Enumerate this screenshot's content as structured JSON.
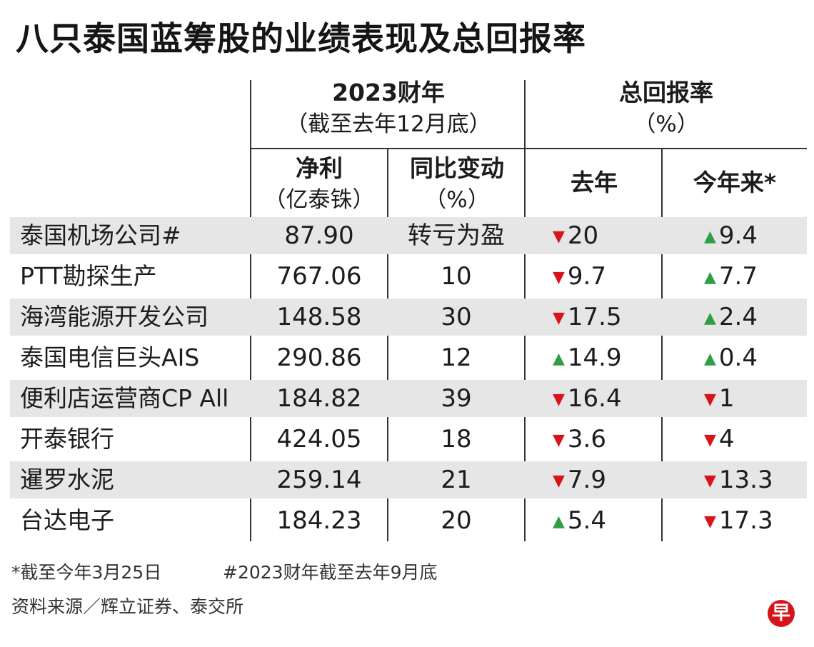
{
  "title": "八只泰国蓝筹股的业绩表现及总回报率",
  "header": {
    "fy_group": "2023财年",
    "fy_group_sub": "（截至去年12月底）",
    "return_group": "总回报率",
    "return_group_sub": "（%）",
    "col_profit": "净利",
    "col_profit_unit": "（亿泰铢）",
    "col_change": "同比变动",
    "col_change_unit": "（%）",
    "col_last_year": "去年",
    "col_ytd": "今年来*"
  },
  "rows": [
    {
      "name": "泰国机场公司#",
      "profit": "87.90",
      "change": "转亏为盈",
      "last_dir": "down",
      "last": "20",
      "ytd_dir": "up",
      "ytd": "9.4"
    },
    {
      "name": "PTT勘探生产",
      "profit": "767.06",
      "change": "10",
      "last_dir": "down",
      "last": "9.7",
      "ytd_dir": "up",
      "ytd": "7.7"
    },
    {
      "name": "海湾能源开发公司",
      "profit": "148.58",
      "change": "30",
      "last_dir": "down",
      "last": "17.5",
      "ytd_dir": "up",
      "ytd": "2.4"
    },
    {
      "name": "泰国电信巨头AIS",
      "profit": "290.86",
      "change": "12",
      "last_dir": "up",
      "last": "14.9",
      "ytd_dir": "up",
      "ytd": "0.4"
    },
    {
      "name": "便利店运营商CP All",
      "profit": "184.82",
      "change": "39",
      "last_dir": "down",
      "last": "16.4",
      "ytd_dir": "down",
      "ytd": "1"
    },
    {
      "name": "开泰银行",
      "profit": "424.05",
      "change": "18",
      "last_dir": "down",
      "last": "3.6",
      "ytd_dir": "down",
      "ytd": "4"
    },
    {
      "name": "暹罗水泥",
      "profit": "259.14",
      "change": "21",
      "last_dir": "down",
      "last": "7.9",
      "ytd_dir": "down",
      "ytd": "13.3"
    },
    {
      "name": "台达电子",
      "profit": "184.23",
      "change": "20",
      "last_dir": "up",
      "last": "5.4",
      "ytd_dir": "down",
      "ytd": "17.3"
    }
  ],
  "footnotes": {
    "note_ytd": "*截至今年3月25日",
    "note_fy": "#2023财年截至去年9月底",
    "source": "资料来源／辉立证券、泰交所"
  },
  "logo_char": "早",
  "colors": {
    "down": "#d7141a",
    "up": "#2f9e44",
    "shade": "#e6e6e6"
  },
  "arrow_glyphs": {
    "down": "▼",
    "up": "▲"
  }
}
